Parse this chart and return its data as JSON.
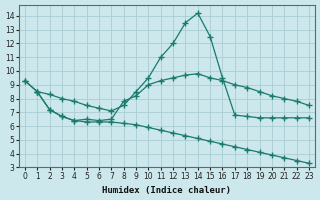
{
  "xlabel": "Humidex (Indice chaleur)",
  "background_color": "#cce8ec",
  "grid_color": "#aaccd4",
  "line_color": "#1a7a6e",
  "xlim": [
    -0.5,
    23.5
  ],
  "ylim": [
    3,
    14.8
  ],
  "yticks": [
    3,
    4,
    5,
    6,
    7,
    8,
    9,
    10,
    11,
    12,
    13,
    14
  ],
  "xticks": [
    0,
    1,
    2,
    3,
    4,
    5,
    6,
    7,
    8,
    9,
    10,
    11,
    12,
    13,
    14,
    15,
    16,
    17,
    18,
    19,
    20,
    21,
    22,
    23
  ],
  "line1": {
    "x": [
      0,
      1,
      2,
      3,
      4,
      5,
      6,
      7,
      8,
      9,
      10,
      11,
      12,
      13,
      14,
      15,
      16,
      17,
      18,
      19,
      20,
      21,
      22,
      23
    ],
    "y": [
      9.3,
      8.5,
      8.3,
      8.0,
      7.8,
      7.5,
      7.3,
      7.1,
      7.5,
      8.5,
      9.5,
      11.0,
      12.0,
      13.5,
      14.2,
      12.5,
      9.5,
      6.8,
      6.7,
      6.6,
      6.6,
      6.6,
      6.6,
      6.6
    ]
  },
  "line2": {
    "x": [
      1,
      2,
      3,
      4,
      5,
      6,
      7,
      8,
      9,
      10,
      11,
      12,
      13,
      14,
      15,
      16,
      17,
      18,
      19,
      20,
      21,
      22,
      23
    ],
    "y": [
      8.5,
      7.2,
      6.7,
      6.4,
      6.5,
      6.4,
      6.5,
      7.8,
      8.2,
      9.0,
      9.3,
      9.5,
      9.7,
      9.8,
      9.5,
      9.3,
      9.0,
      8.8,
      8.5,
      8.2,
      8.0,
      7.8,
      7.5
    ]
  },
  "line3": {
    "x": [
      0,
      1,
      2,
      3,
      4,
      5,
      6,
      7,
      8,
      9,
      10,
      11,
      12,
      13,
      14,
      15,
      16,
      17,
      18,
      19,
      20,
      21,
      22,
      23
    ],
    "y": [
      9.3,
      8.5,
      7.2,
      6.7,
      6.4,
      6.3,
      6.3,
      6.3,
      6.2,
      6.1,
      5.9,
      5.7,
      5.5,
      5.3,
      5.1,
      4.9,
      4.7,
      4.5,
      4.3,
      4.1,
      3.9,
      3.7,
      3.5,
      3.3
    ]
  }
}
